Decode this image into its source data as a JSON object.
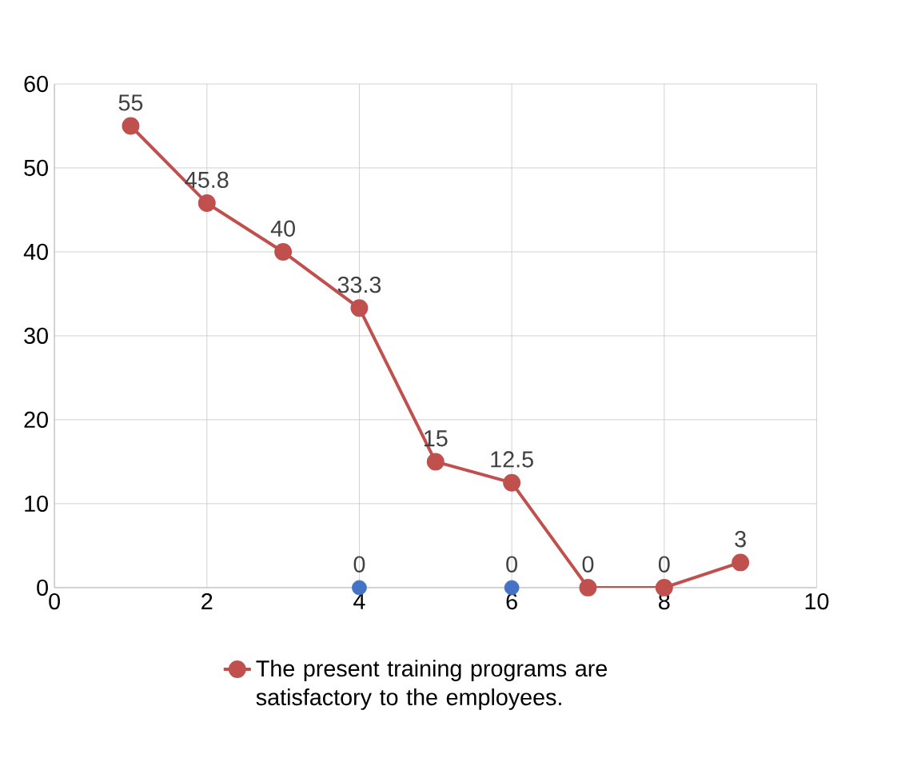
{
  "chart_data": {
    "type": "line",
    "xlim": [
      0,
      10
    ],
    "ylim": [
      0,
      60
    ],
    "xticks": [
      0,
      2,
      4,
      6,
      8,
      10
    ],
    "yticks": [
      0,
      10,
      20,
      30,
      40,
      50,
      60
    ],
    "grid": true,
    "legend": "bottom",
    "marker": "circle",
    "data_labels": true,
    "series": [
      {
        "name": "The present training programs are satisfactory to the employees.",
        "color": "#c0504d",
        "x": [
          1,
          2,
          3,
          4,
          5,
          6,
          7,
          8,
          9
        ],
        "values": [
          55,
          45.8,
          40,
          33.3,
          15,
          12.5,
          0,
          0,
          3
        ]
      },
      {
        "type": "scatter",
        "color": "#4472c4",
        "x": [
          4,
          6
        ],
        "values": [
          0,
          0
        ]
      }
    ]
  }
}
